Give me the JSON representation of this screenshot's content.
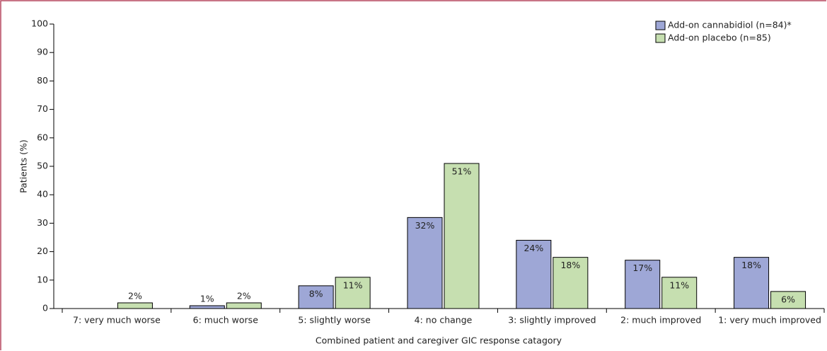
{
  "chart_data": {
    "type": "bar",
    "x_label": "Combined patient and caregiver GIC response catagory",
    "y_label": "Patients (%)",
    "categories": [
      "7: very much worse",
      "6: much worse",
      "5: slightly worse",
      "4: no change",
      "3: slightly improved",
      "2: much improved",
      "1: very much improved"
    ],
    "series": [
      {
        "name": "Add-on cannabidiol (n=84)*",
        "color": "#9ea7d6",
        "values": [
          null,
          1,
          8,
          32,
          24,
          17,
          18
        ],
        "value_labels": [
          null,
          "1%",
          "8%",
          "32%",
          "24%",
          "17%",
          "18%"
        ]
      },
      {
        "name": "Add-on placebo (n=85)",
        "color": "#c6dfb0",
        "values": [
          2,
          2,
          11,
          51,
          18,
          11,
          6
        ],
        "value_labels": [
          "2%",
          "2%",
          "11%",
          "51%",
          "18%",
          "11%",
          "6%"
        ]
      }
    ],
    "ylim": [
      0,
      100
    ],
    "yticks": [
      0,
      10,
      20,
      30,
      40,
      50,
      60,
      70,
      80,
      90,
      100
    ],
    "legend": "top-right"
  }
}
